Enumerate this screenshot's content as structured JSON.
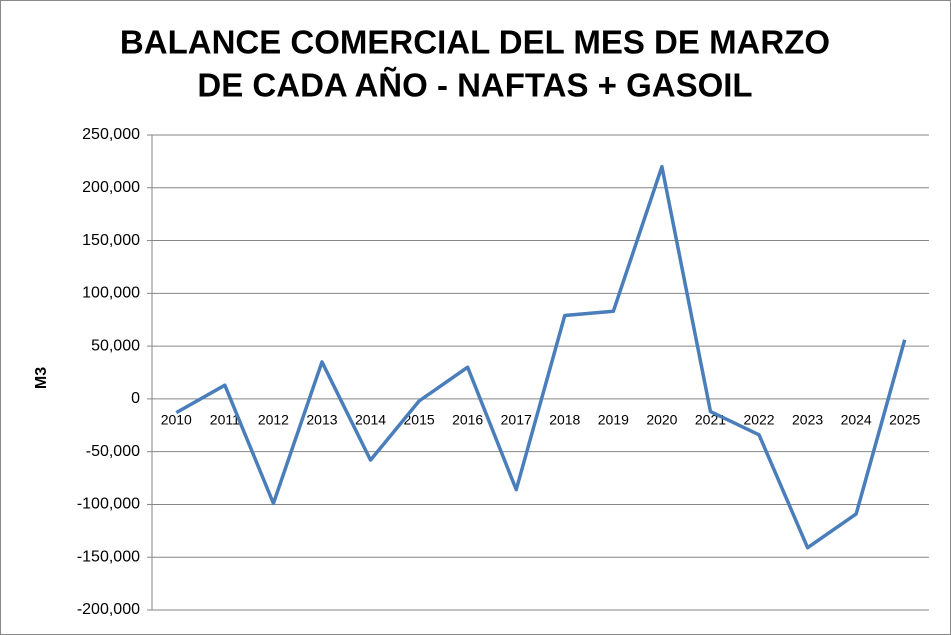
{
  "chart_data": {
    "type": "line",
    "title": [
      "BALANCE COMERCIAL DEL MES DE MARZO",
      "DE CADA AÑO - NAFTAS + GASOIL"
    ],
    "y_label": "M3",
    "categories": [
      "2010",
      "2011",
      "2012",
      "2013",
      "2014",
      "2015",
      "2016",
      "2017",
      "2018",
      "2019",
      "2020",
      "2021",
      "2022",
      "2023",
      "2024",
      "2025"
    ],
    "series": [
      {
        "name": "M3",
        "color": "#4a7ebb",
        "values": [
          -13000,
          13000,
          -99000,
          35000,
          -58000,
          -2000,
          30000,
          -86000,
          79000,
          83000,
          220000,
          -12000,
          -34000,
          -141000,
          -109000,
          56000
        ]
      }
    ],
    "ylim": [
      -200000,
      250000
    ],
    "yticks": [
      {
        "value": -200000,
        "label": "-200,000"
      },
      {
        "value": -150000,
        "label": "-150,000"
      },
      {
        "value": -100000,
        "label": "-100,000"
      },
      {
        "value": -50000,
        "label": "-50,000"
      },
      0,
      {
        "value": 50000,
        "label": "50,000"
      },
      {
        "value": 100000,
        "label": "100,000"
      },
      {
        "value": 150000,
        "label": "150,000"
      },
      {
        "value": 200000,
        "label": "200,000"
      },
      {
        "value": 250000,
        "label": "250,000"
      }
    ],
    "grid": true
  }
}
